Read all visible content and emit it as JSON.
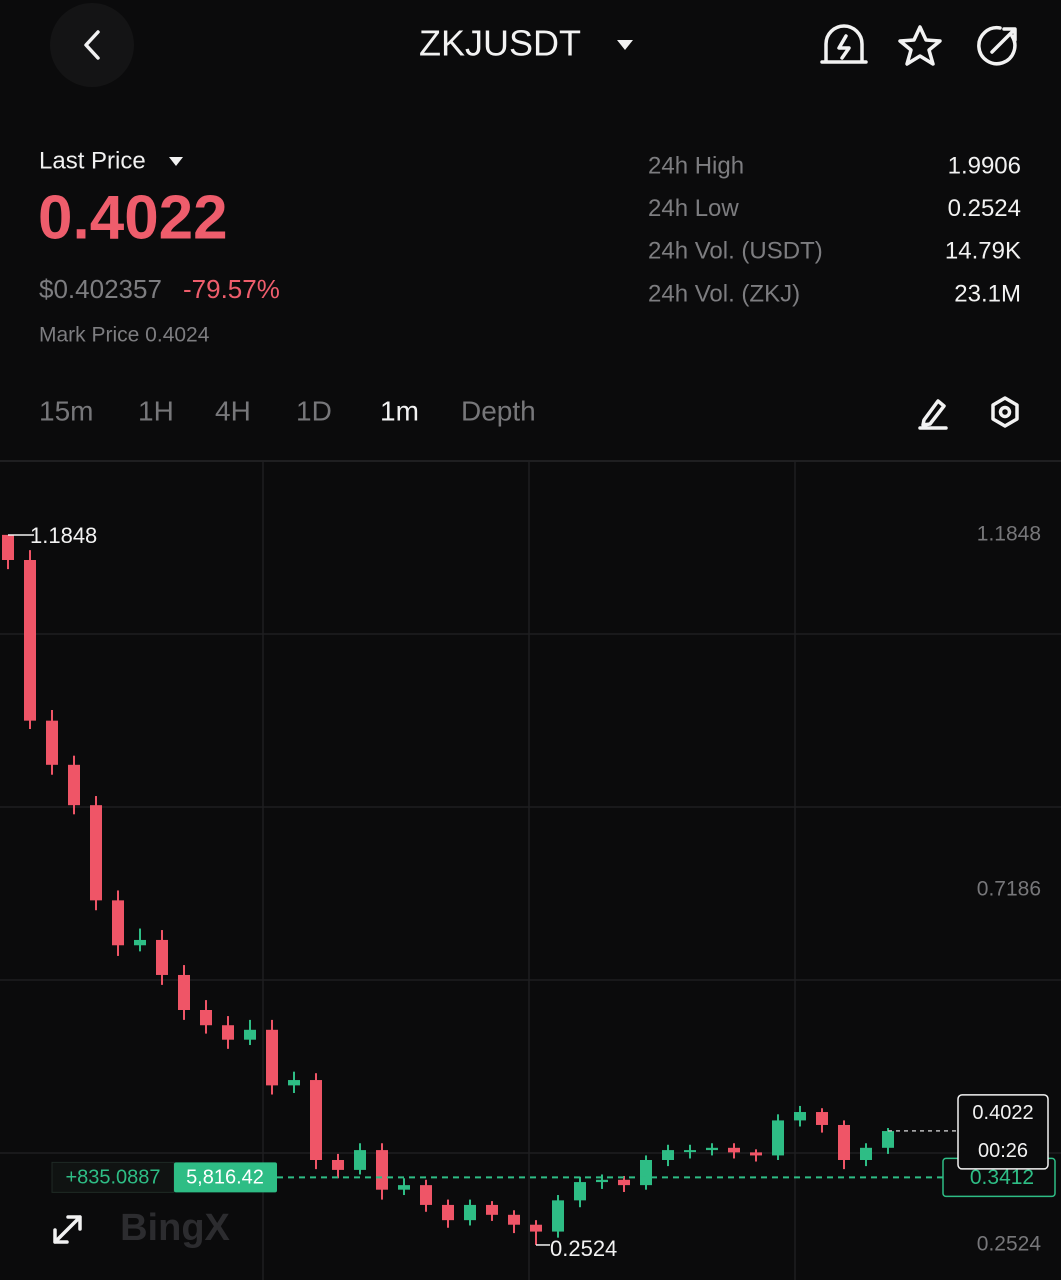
{
  "header": {
    "title": "ZKJUSDT"
  },
  "ticker": {
    "label": "Last Price",
    "price": 0.4022,
    "usd_price": "$0.402357",
    "change": "-79.57%",
    "mark_price": "Mark Price 0.4024"
  },
  "stats": [
    {
      "label": "24h High",
      "value": 1.9906
    },
    {
      "label": "24h Low",
      "value": 0.2524
    },
    {
      "label": "24h Vol. (USDT)",
      "value": "14.79K"
    },
    {
      "label": "24h Vol. (ZKJ)",
      "value": "23.1M"
    }
  ],
  "tabs": [
    "15m",
    "1H",
    "4H",
    "1D",
    "1m",
    "Depth"
  ],
  "watermark": "BingX",
  "chart_data": {
    "type": "candlestick",
    "up_color": "#2ebd85",
    "down_color": "#ef5567",
    "ylim": [
      0.2064,
      1.2807
    ],
    "yticks": [
      1.1848,
      0.7186,
      0.2524
    ],
    "high_marker": 1.1848,
    "low_marker": 0.2524,
    "last_price": 0.4022,
    "countdown": "00:26",
    "position_price": 0.3412,
    "position_pnl": "+835.0887",
    "position_margin": "5,816.42",
    "open": [
      1.185,
      1.152,
      0.941,
      0.883,
      0.83,
      0.705,
      0.646,
      0.653,
      0.607,
      0.561,
      0.541,
      0.522,
      0.535,
      0.462,
      0.469,
      0.364,
      0.351,
      0.377,
      0.325,
      0.331,
      0.305,
      0.285,
      0.305,
      0.292,
      0.279,
      0.27,
      0.311,
      0.335,
      0.338,
      0.331,
      0.364,
      0.377,
      0.377,
      0.38,
      0.374,
      0.37,
      0.416,
      0.427,
      0.41,
      0.364,
      0.38
    ],
    "high": [
      1.1848,
      1.165,
      0.955,
      0.895,
      0.842,
      0.718,
      0.668,
      0.666,
      0.62,
      0.574,
      0.553,
      0.548,
      0.548,
      0.48,
      0.478,
      0.372,
      0.386,
      0.386,
      0.34,
      0.338,
      0.312,
      0.312,
      0.31,
      0.298,
      0.285,
      0.318,
      0.342,
      0.345,
      0.343,
      0.37,
      0.384,
      0.384,
      0.386,
      0.386,
      0.378,
      0.424,
      0.435,
      0.432,
      0.416,
      0.386,
      0.406
    ],
    "low": [
      1.14,
      0.93,
      0.87,
      0.818,
      0.692,
      0.632,
      0.638,
      0.594,
      0.548,
      0.53,
      0.51,
      0.515,
      0.45,
      0.452,
      0.352,
      0.34,
      0.345,
      0.312,
      0.318,
      0.296,
      0.275,
      0.278,
      0.284,
      0.268,
      0.2524,
      0.262,
      0.302,
      0.326,
      0.322,
      0.325,
      0.356,
      0.366,
      0.37,
      0.366,
      0.362,
      0.364,
      0.408,
      0.4,
      0.352,
      0.356,
      0.372
    ],
    "close": [
      1.152,
      0.941,
      0.883,
      0.83,
      0.705,
      0.646,
      0.653,
      0.607,
      0.561,
      0.541,
      0.522,
      0.535,
      0.462,
      0.469,
      0.364,
      0.351,
      0.377,
      0.325,
      0.331,
      0.305,
      0.285,
      0.305,
      0.292,
      0.279,
      0.27,
      0.311,
      0.335,
      0.338,
      0.331,
      0.364,
      0.377,
      0.377,
      0.38,
      0.374,
      0.37,
      0.416,
      0.427,
      0.41,
      0.364,
      0.38,
      0.402
    ]
  }
}
